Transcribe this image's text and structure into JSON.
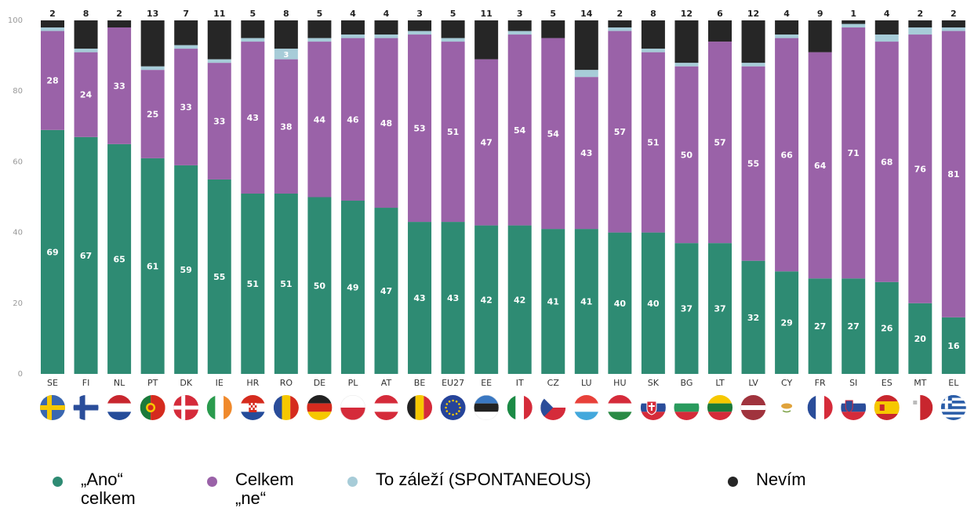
{
  "chart_data": {
    "type": "bar",
    "stacked": true,
    "ylim": [
      0,
      100
    ],
    "yticks": [
      0,
      20,
      40,
      60,
      80,
      100
    ],
    "grid": false,
    "legend_position": "bottom",
    "categories": [
      "SE",
      "FI",
      "NL",
      "PT",
      "DK",
      "IE",
      "HR",
      "RO",
      "DE",
      "PL",
      "AT",
      "BE",
      "EU27",
      "EE",
      "IT",
      "CZ",
      "LU",
      "HU",
      "SK",
      "BG",
      "LT",
      "LV",
      "CY",
      "FR",
      "SI",
      "ES",
      "MT",
      "EL"
    ],
    "series": [
      {
        "name": "„Ano“ celkem",
        "color": "#2e8b73",
        "values": [
          69,
          67,
          65,
          61,
          59,
          55,
          51,
          51,
          50,
          49,
          47,
          43,
          43,
          42,
          42,
          41,
          41,
          40,
          40,
          37,
          37,
          32,
          29,
          27,
          27,
          26,
          20,
          16
        ]
      },
      {
        "name": "Celkem „ne“",
        "color": "#9a62a8",
        "values": [
          28,
          24,
          33,
          25,
          33,
          33,
          43,
          38,
          44,
          46,
          48,
          53,
          51,
          47,
          54,
          54,
          43,
          57,
          51,
          50,
          57,
          55,
          66,
          64,
          71,
          68,
          76,
          81
        ]
      },
      {
        "name": "To záleží (SPONTANEOUS)",
        "color": "#a7ccd8",
        "values": [
          1,
          1,
          0,
          1,
          1,
          1,
          1,
          3,
          1,
          1,
          1,
          1,
          1,
          0,
          1,
          0,
          2,
          1,
          1,
          1,
          0,
          1,
          1,
          0,
          1,
          2,
          2,
          1
        ],
        "labels_shown": [
          null,
          null,
          null,
          null,
          null,
          null,
          null,
          3,
          null,
          null,
          null,
          null,
          null,
          null,
          null,
          null,
          null,
          null,
          null,
          null,
          null,
          null,
          null,
          null,
          null,
          null,
          null,
          null
        ]
      },
      {
        "name": "Nevím",
        "color": "#262626",
        "values": [
          2,
          8,
          2,
          13,
          7,
          11,
          5,
          8,
          5,
          4,
          4,
          3,
          5,
          11,
          3,
          5,
          14,
          2,
          8,
          12,
          6,
          12,
          4,
          9,
          1,
          4,
          2,
          2
        ]
      }
    ]
  },
  "legend": {
    "yes_line1": "„Ano“",
    "yes_line2": "celkem",
    "no_line1": "Celkem",
    "no_line2": "„ne“",
    "depends": "To záleží (SPONTANEOUS)",
    "dontknow": "Nevím"
  },
  "flags": [
    "sweden-flag-icon",
    "finland-flag-icon",
    "netherlands-flag-icon",
    "portugal-flag-icon",
    "denmark-flag-icon",
    "ireland-flag-icon",
    "croatia-flag-icon",
    "romania-flag-icon",
    "germany-flag-icon",
    "poland-flag-icon",
    "austria-flag-icon",
    "belgium-flag-icon",
    "eu-flag-icon",
    "estonia-flag-icon",
    "italy-flag-icon",
    "czechia-flag-icon",
    "luxembourg-flag-icon",
    "hungary-flag-icon",
    "slovakia-flag-icon",
    "bulgaria-flag-icon",
    "lithuania-flag-icon",
    "latvia-flag-icon",
    "cyprus-flag-icon",
    "france-flag-icon",
    "slovenia-flag-icon",
    "spain-flag-icon",
    "malta-flag-icon",
    "greece-flag-icon"
  ]
}
